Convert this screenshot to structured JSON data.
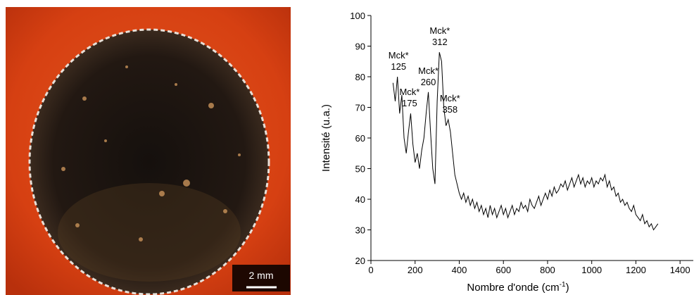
{
  "image": {
    "scale_bar": "2 mm"
  },
  "chart_data": {
    "type": "line",
    "x_label": [
      "Nombre d'onde (cm",
      "-1",
      ")"
    ],
    "y_label": "Intensité (u.a.)",
    "color": "#000000",
    "xlim": [
      0,
      1460
    ],
    "xticks": [
      0,
      200,
      400,
      600,
      800,
      1000,
      1200,
      1400
    ],
    "ylim": [
      20,
      100
    ],
    "yticks": [
      20,
      30,
      40,
      50,
      60,
      70,
      80,
      90,
      100
    ],
    "annotations": [
      {
        "label": "Mck*",
        "x": 125
      },
      {
        "label": "Mck*",
        "x": 175
      },
      {
        "label": "Mck*",
        "x": 260
      },
      {
        "label": "Mck*",
        "x": 312
      },
      {
        "label": "Mck*",
        "x": 358
      }
    ],
    "x": [
      100,
      110,
      120,
      130,
      140,
      150,
      160,
      170,
      180,
      190,
      200,
      210,
      220,
      230,
      240,
      250,
      260,
      270,
      280,
      290,
      300,
      310,
      320,
      330,
      340,
      350,
      360,
      370,
      380,
      390,
      400,
      410,
      420,
      430,
      440,
      450,
      460,
      470,
      480,
      490,
      500,
      510,
      520,
      530,
      540,
      550,
      560,
      570,
      580,
      590,
      600,
      610,
      620,
      630,
      640,
      650,
      660,
      670,
      680,
      690,
      700,
      710,
      720,
      730,
      740,
      750,
      760,
      770,
      780,
      790,
      800,
      810,
      820,
      830,
      840,
      850,
      860,
      870,
      880,
      890,
      900,
      910,
      920,
      930,
      940,
      950,
      960,
      970,
      980,
      990,
      1000,
      1010,
      1020,
      1030,
      1040,
      1050,
      1060,
      1070,
      1080,
      1090,
      1100,
      1110,
      1120,
      1130,
      1140,
      1150,
      1160,
      1170,
      1180,
      1190,
      1200,
      1210,
      1220,
      1230,
      1240,
      1250,
      1260,
      1270,
      1280,
      1290,
      1300
    ],
    "values": [
      78,
      72,
      80,
      68,
      74,
      60,
      55,
      62,
      68,
      58,
      52,
      55,
      50,
      56,
      60,
      68,
      75,
      62,
      50,
      45,
      72,
      88,
      85,
      70,
      64,
      66,
      62,
      55,
      48,
      45,
      42,
      40,
      42,
      39,
      41,
      38,
      40,
      37,
      39,
      36,
      38,
      35,
      37,
      34,
      38,
      35,
      37,
      34,
      36,
      38,
      35,
      37,
      34,
      36,
      38,
      35,
      37,
      36,
      39,
      37,
      38,
      36,
      40,
      38,
      37,
      39,
      41,
      38,
      40,
      42,
      40,
      43,
      41,
      44,
      42,
      43,
      45,
      44,
      46,
      43,
      45,
      47,
      44,
      46,
      48,
      45,
      47,
      44,
      46,
      45,
      47,
      44,
      46,
      45,
      47,
      46,
      48,
      44,
      46,
      43,
      44,
      41,
      42,
      39,
      40,
      38,
      39,
      37,
      36,
      38,
      35,
      34,
      33,
      35,
      32,
      33,
      31,
      32,
      30,
      31,
      32
    ]
  }
}
